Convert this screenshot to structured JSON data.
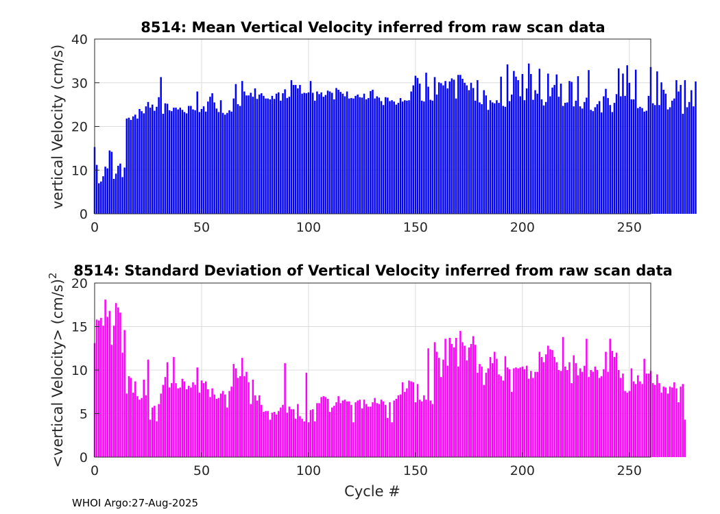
{
  "chart_data": [
    {
      "type": "bar",
      "title": "8514: Mean Vertical Velocity inferred from raw scan data",
      "xlabel": "",
      "ylabel": "vertical Velocity (cm/s)",
      "xlim": [
        0,
        260
      ],
      "ylim": [
        0,
        40
      ],
      "xticks": [
        0,
        50,
        100,
        150,
        200,
        250
      ],
      "yticks": [
        0,
        10,
        20,
        30,
        40
      ],
      "grid": true,
      "color": "#0000ff",
      "x_start": 0,
      "values": [
        15.3,
        11.2,
        7.0,
        7.4,
        8.6,
        10.8,
        10.4,
        14.5,
        14.2,
        8.0,
        9.2,
        11.0,
        11.5,
        8.4,
        10.6,
        21.8,
        22.0,
        21.5,
        22.3,
        22.7,
        21.8,
        24.0,
        23.5,
        23.0,
        24.6,
        25.6,
        24.3,
        25.0,
        23.6,
        24.5,
        26.7,
        31.3,
        22.9,
        25.3,
        25.2,
        23.7,
        23.5,
        24.3,
        24.3,
        23.9,
        24.3,
        23.8,
        23.3,
        23.0,
        24.7,
        24.7,
        23.9,
        23.7,
        28.0,
        23.3,
        24.0,
        24.6,
        23.4,
        25.7,
        26.8,
        27.6,
        25.5,
        24.1,
        23.3,
        26.0,
        23.1,
        22.7,
        23.1,
        23.7,
        23.4,
        26.4,
        29.7,
        25.1,
        24.7,
        30.4,
        28.0,
        27.1,
        27.1,
        27.7,
        26.8,
        28.7,
        26.3,
        27.3,
        27.6,
        27.0,
        26.4,
        26.4,
        26.2,
        27.0,
        26.3,
        27.5,
        27.8,
        25.9,
        27.6,
        28.5,
        26.5,
        26.8,
        30.6,
        29.5,
        29.5,
        28.7,
        29.5,
        27.5,
        27.7,
        27.6,
        27.8,
        30.4,
        27.7,
        25.9,
        28.0,
        27.4,
        27.8,
        26.8,
        27.2,
        28.2,
        28.0,
        27.7,
        26.2,
        28.8,
        28.4,
        27.9,
        27.5,
        26.9,
        28.0,
        26.4,
        26.5,
        26.4,
        27.0,
        27.3,
        26.7,
        26.6,
        27.5,
        26.2,
        26.5,
        28.1,
        28.4,
        26.4,
        26.9,
        26.6,
        25.8,
        24.9,
        26.7,
        26.6,
        25.8,
        26.0,
        25.7,
        25.0,
        25.4,
        26.5,
        25.7,
        26.0,
        25.9,
        26.0,
        28.0,
        29.4,
        31.6,
        31.1,
        29.8,
        25.9,
        25.7,
        32.3,
        29.1,
        26.1,
        25.9,
        31.3,
        27.3,
        30.1,
        29.9,
        29.4,
        30.4,
        28.7,
        30.3,
        31.0,
        30.7,
        26.4,
        31.8,
        31.8,
        30.9,
        30.0,
        29.4,
        28.3,
        30.0,
        28.8,
        25.9,
        30.6,
        25.5,
        25.1,
        28.3,
        27.1,
        23.8,
        26.0,
        25.5,
        25.3,
        26.0,
        25.4,
        31.4,
        24.7,
        24.5,
        34.2,
        25.8,
        27.3,
        32.7,
        31.4,
        30.6,
        26.9,
        32.0,
        26.0,
        28.7,
        34.4,
        32.0,
        26.1,
        28.3,
        27.5,
        33.2,
        26.2,
        24.8,
        25.6,
        32.1,
        26.9,
        28.9,
        29.5,
        31.9,
        26.8,
        29.8,
        24.7,
        25.4,
        25.5,
        30.4,
        30.2,
        24.6,
        25.9,
        31.5,
        24.6,
        24.1,
        25.6,
        26.6,
        32.9,
        23.8,
        23.5,
        24.4,
        25.1,
        25.8,
        23.2,
        26.9,
        28.6,
        26.5,
        24.9,
        23.3,
        25.4,
        27.4,
        33.3,
        26.9,
        32.1,
        27.0,
        34.0,
        30.0,
        26.2,
        26.2,
        33.0,
        24.2,
        24.5,
        24.2,
        23.4,
        23.6,
        27.0,
        33.6,
        25.3,
        24.9,
        32.6,
        24.9,
        30.1,
        28.4,
        27.5,
        23.9,
        24.4,
        25.9,
        26.4,
        30.6,
        28.0,
        29.5,
        22.9,
        30.6,
        24.4,
        25.6,
        28.3,
        24.6,
        30.3
      ]
    },
    {
      "type": "bar",
      "title": "8514: Standard Deviation of Vertical Velocity inferred from raw scan data",
      "xlabel": "Cycle #",
      "ylabel": "<vertical Velocity> (cm/s)",
      "ylabel_superscript": "2",
      "xlim": [
        0,
        260
      ],
      "ylim": [
        0,
        20
      ],
      "xticks": [
        0,
        50,
        100,
        150,
        200,
        250
      ],
      "yticks": [
        0,
        5,
        10,
        15,
        20
      ],
      "grid": true,
      "color": "#ff00ff",
      "x_start": 0,
      "values": [
        13.1,
        15.8,
        15.7,
        16.0,
        15.1,
        18.1,
        16.1,
        16.8,
        12.9,
        15.1,
        17.7,
        17.2,
        16.6,
        12.0,
        14.6,
        7.3,
        9.3,
        9.1,
        7.4,
        8.7,
        7.0,
        6.6,
        6.8,
        8.9,
        7.1,
        11.2,
        4.3,
        5.7,
        5.9,
        4.1,
        6.1,
        7.3,
        8.3,
        9.2,
        10.9,
        8.0,
        8.5,
        11.5,
        8.5,
        7.9,
        8.0,
        9.0,
        8.7,
        7.8,
        8.2,
        8.0,
        8.6,
        8.3,
        10.3,
        7.4,
        8.8,
        8.5,
        8.7,
        7.8,
        6.9,
        7.9,
        7.2,
        6.7,
        6.8,
        7.3,
        7.6,
        7.2,
        5.7,
        7.6,
        8.1,
        10.7,
        10.2,
        9.1,
        9.3,
        11.4,
        9.3,
        9.8,
        8.6,
        6.1,
        8.9,
        7.1,
        6.5,
        7.1,
        6.0,
        5.2,
        5.3,
        5.3,
        4.3,
        5.1,
        5.2,
        4.9,
        5.3,
        5.7,
        6.0,
        10.8,
        5.1,
        5.8,
        5.5,
        5.5,
        4.4,
        6.1,
        4.7,
        4.4,
        4.1,
        9.7,
        4.0,
        5.4,
        5.5,
        4.1,
        6.2,
        6.2,
        6.9,
        7.0,
        6.9,
        6.7,
        5.2,
        5.7,
        5.9,
        6.3,
        7.0,
        6.2,
        6.5,
        6.6,
        6.4,
        6.4,
        6.0,
        4.0,
        6.3,
        6.5,
        6.6,
        5.6,
        6.6,
        6.1,
        5.8,
        5.8,
        6.3,
        6.8,
        6.2,
        6.1,
        6.6,
        6.4,
        6.0,
        4.5,
        6.3,
        4.0,
        6.5,
        6.7,
        7.1,
        7.2,
        8.6,
        7.5,
        7.9,
        8.8,
        8.7,
        8.6,
        6.3,
        8.4,
        6.6,
        6.4,
        7.1,
        6.6,
        12.5,
        6.5,
        6.1,
        13.2,
        12.1,
        11.4,
        9.2,
        11.2,
        13.6,
        10.5,
        13.7,
        13.0,
        12.6,
        13.7,
        10.4,
        14.5,
        13.2,
        12.8,
        11.1,
        12.6,
        13.0,
        13.9,
        12.9,
        9.7,
        10.7,
        10.4,
        8.3,
        9.7,
        10.2,
        11.5,
        10.8,
        12.1,
        11.3,
        9.5,
        9.3,
        8.8,
        11.6,
        10.3,
        10.1,
        7.5,
        10.2,
        10.3,
        10.2,
        10.3,
        10.4,
        10.1,
        10.5,
        9.0,
        9.9,
        9.1,
        9.8,
        9.8,
        12.1,
        11.5,
        10.9,
        11.8,
        12.8,
        12.4,
        12.3,
        11.5,
        10.9,
        10.0,
        9.9,
        13.8,
        10.4,
        10.0,
        10.9,
        8.5,
        11.7,
        10.8,
        9.4,
        10.2,
        9.8,
        10.5,
        13.6,
        9.2,
        10.0,
        9.8,
        10.4,
        10.0,
        9.1,
        9.3,
        10.1,
        12.1,
        9.8,
        13.6,
        12.2,
        11.5,
        12.0,
        10.0,
        9.1,
        9.6,
        7.6,
        7.4,
        7.6,
        10.2,
        8.7,
        8.4,
        9.4,
        8.7,
        8.4,
        11.3,
        9.6,
        9.6,
        9.9,
        8.5,
        8.3,
        9.5,
        8.5,
        7.4,
        8.1,
        8.0,
        7.3,
        8.1,
        8.0,
        8.6,
        7.9,
        6.3,
        8.1,
        8.4,
        4.3
      ]
    }
  ],
  "footer": "WHOI Argo:27-Aug-2025"
}
